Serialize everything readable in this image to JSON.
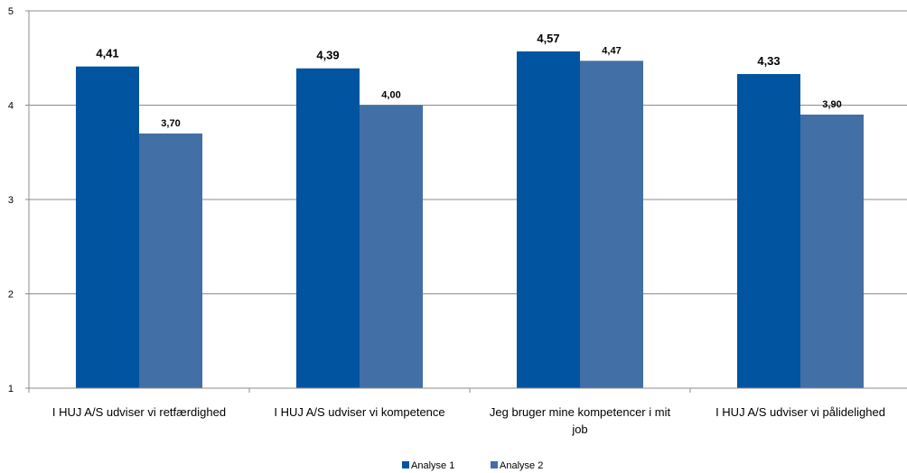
{
  "chart_data": {
    "type": "bar",
    "categories": [
      [
        "I HUJ A/S udviser vi retfærdighed"
      ],
      [
        "I HUJ A/S udviser vi kompetence"
      ],
      [
        "Jeg bruger mine kompetencer i mit",
        "job"
      ],
      [
        "I HUJ A/S udviser vi pålidelighed"
      ]
    ],
    "series": [
      {
        "name": "Analyse 1",
        "color": "#0154A0",
        "values": [
          4.41,
          4.39,
          4.57,
          4.33
        ],
        "labels": [
          "4,41",
          "4,39",
          "4,57",
          "4,33"
        ]
      },
      {
        "name": "Analyse 2",
        "color": "#426FA5",
        "values": [
          3.7,
          4.0,
          4.47,
          3.9
        ],
        "labels": [
          "3,70",
          "4,00",
          "4,47",
          "3,90"
        ]
      }
    ],
    "yticks": [
      1,
      2,
      3,
      4,
      5
    ],
    "ylim": [
      1,
      5
    ],
    "grid": true,
    "legend_position": "bottom-center",
    "title": "",
    "xlabel": "",
    "ylabel": ""
  }
}
